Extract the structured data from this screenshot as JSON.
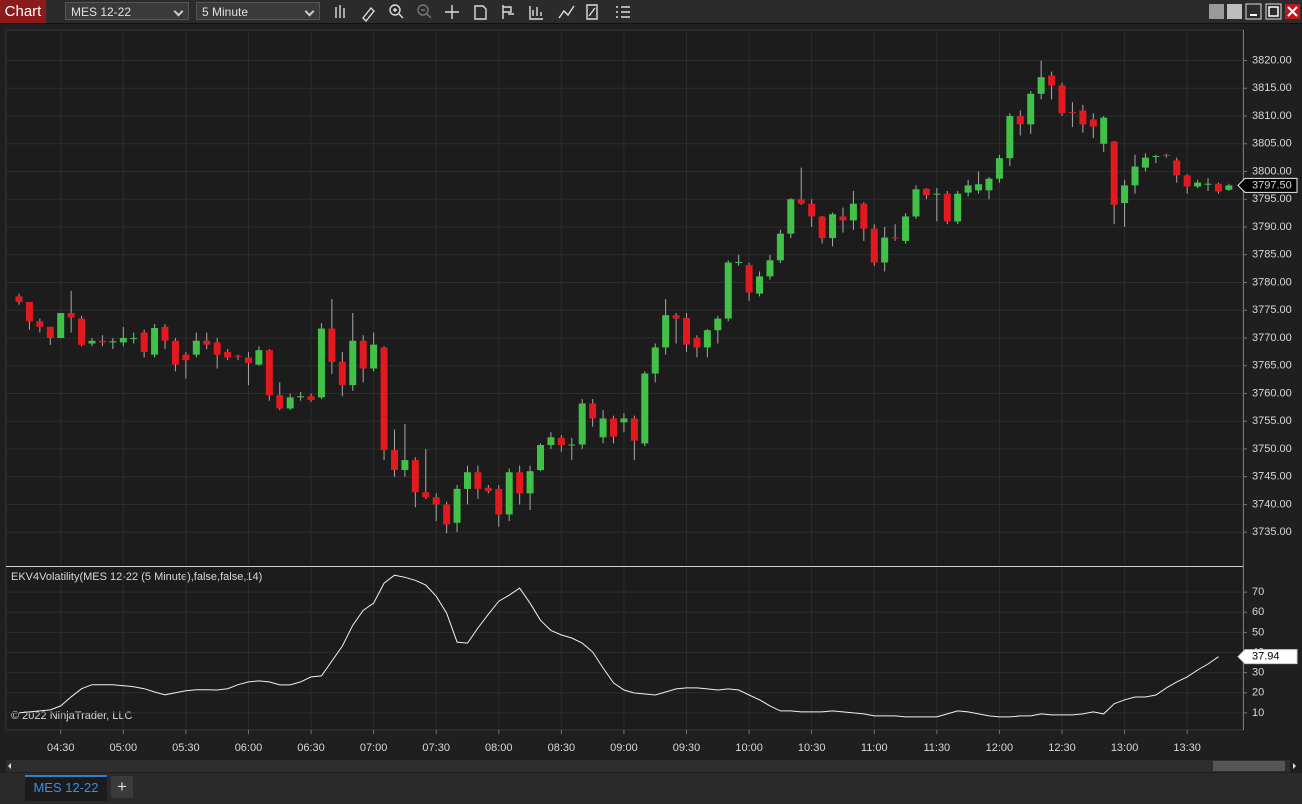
{
  "toolbar": {
    "label": "Chart",
    "instrument": "MES 12-22",
    "interval": "5 Minute"
  },
  "tabs": {
    "active": "MES 12-22",
    "add": "+"
  },
  "chart_data": [
    {
      "type": "candlestick",
      "categories": [
        null,
        null,
        null,
        null,
        "04:30",
        null,
        null,
        null,
        null,
        null,
        "05:00",
        null,
        null,
        null,
        null,
        null,
        "05:30",
        null,
        null,
        null,
        null,
        null,
        "06:00",
        null,
        null,
        null,
        null,
        null,
        "06:30",
        null,
        null,
        null,
        null,
        null,
        "07:00",
        null,
        null,
        null,
        null,
        null,
        "07:30",
        null,
        null,
        null,
        null,
        null,
        "08:00",
        null,
        null,
        null,
        null,
        null,
        "08:30",
        null,
        null,
        null,
        null,
        null,
        "09:00",
        null,
        null,
        null,
        null,
        null,
        "09:30",
        null,
        null,
        null,
        null,
        null,
        "10:00",
        null,
        null,
        null,
        null,
        null,
        "10:30",
        null,
        null,
        null,
        null,
        null,
        "11:00",
        null,
        null,
        null,
        null,
        null,
        "11:30",
        null,
        null,
        null,
        null,
        null,
        "12:00",
        null,
        null,
        null,
        null,
        null,
        "12:30",
        null,
        null,
        null,
        null,
        null,
        "13:00",
        null,
        null,
        null,
        null,
        null,
        "13:30",
        null,
        null,
        null,
        null
      ],
      "open": [
        3777.5,
        3776.5,
        3773,
        3772,
        3770,
        3774.5,
        3773.5,
        3769,
        3769.5,
        3769.2,
        3769.2,
        3770,
        3771,
        3767,
        3772,
        3769.5,
        3767,
        3767,
        3769.5,
        3769.2,
        3767.5,
        3766.8,
        3766.5,
        3765.2,
        3767.8,
        3759.7,
        3757.3,
        3759.3,
        3759.5,
        3759.3,
        3771.7,
        3765.7,
        3761.5,
        3769.5,
        3764.5,
        3768.3,
        3749.8,
        3746.2,
        3748,
        3742.2,
        3741.3,
        3740,
        3736.7,
        3742.8,
        3745.8,
        3743,
        3742.8,
        3738.2,
        3745.8,
        3742,
        3746.2,
        3750.7,
        3752,
        3750.7,
        3750.8,
        3758.2,
        3752.1,
        3755.5,
        3754.8,
        3755.5,
        3751,
        3763.6,
        3768.3,
        3774.1,
        3773.6,
        3770,
        3768.3,
        3771.4,
        3773.5,
        3783.6,
        3783.1,
        3778,
        3781.1,
        3784,
        3788.8,
        3795,
        3794.2,
        3791.9,
        3788,
        3791.9,
        3791.2,
        3794.2,
        3789.7,
        3783.6,
        3788.1,
        3787.5,
        3791.9,
        3796.9,
        3796,
        3796,
        3791,
        3796.2,
        3796.6,
        3796.6,
        3798.7,
        3802.4,
        3810,
        3808.5,
        3814,
        3817.3,
        3815.5,
        3810.7,
        3811,
        3809.4,
        3805,
        3805.4,
        3794.3,
        3797.5,
        3800.7,
        3802.7,
        3803,
        3802,
        3799.3,
        3797.3,
        3797.8,
        3797.8,
        3796.7
      ],
      "high": [
        3778,
        3776.5,
        3773.5,
        3772,
        3774.5,
        3778.5,
        3774,
        3770,
        3770.5,
        3770,
        3772,
        3771,
        3771.5,
        3772.5,
        3772.5,
        3770,
        3767.5,
        3771,
        3771,
        3770,
        3768,
        3767,
        3767.5,
        3768.5,
        3768,
        3762,
        3760,
        3760.3,
        3760,
        3772.7,
        3777,
        3767.5,
        3774.5,
        3770.5,
        3771,
        3768.5,
        3753.5,
        3754.5,
        3748.5,
        3750,
        3742,
        3740.5,
        3743.5,
        3747,
        3747,
        3743.5,
        3743.5,
        3746.5,
        3747,
        3747,
        3751,
        3753,
        3752.5,
        3752,
        3759,
        3759,
        3757,
        3756,
        3756.5,
        3756,
        3764,
        3769,
        3777,
        3774.5,
        3774.5,
        3770.5,
        3771.6,
        3774,
        3784,
        3785,
        3783.6,
        3782,
        3785,
        3789.5,
        3795.2,
        3800.7,
        3795,
        3792,
        3792.6,
        3793.5,
        3796.5,
        3794.5,
        3790.5,
        3790,
        3790.5,
        3792.5,
        3797.5,
        3797,
        3797,
        3796.5,
        3796.5,
        3798.5,
        3800,
        3799,
        3803,
        3810.5,
        3811,
        3814.5,
        3820,
        3818,
        3816,
        3812.5,
        3812,
        3810.5,
        3810,
        3805.5,
        3798.5,
        3803,
        3803.3,
        3803,
        3803.2,
        3802.5,
        3799.5,
        3798.5,
        3798.8,
        3798,
        3797.8
      ],
      "low": [
        3776,
        3771.5,
        3771,
        3768.75,
        3770,
        3771,
        3768.5,
        3768.5,
        3768.5,
        3768,
        3768.5,
        3769,
        3766.5,
        3766.5,
        3768,
        3764,
        3762.7,
        3766.5,
        3768,
        3764.5,
        3766,
        3766,
        3761.5,
        3765,
        3758.7,
        3757,
        3757,
        3758.7,
        3758.5,
        3759,
        3763.5,
        3759.5,
        3760.5,
        3762,
        3764,
        3748,
        3745,
        3745,
        3739.5,
        3741,
        3737,
        3734.8,
        3735,
        3740,
        3741,
        3742,
        3736,
        3737,
        3740,
        3739,
        3746,
        3750,
        3749.5,
        3748,
        3750,
        3754,
        3751,
        3751,
        3753,
        3748,
        3750.5,
        3762,
        3767,
        3769,
        3767.5,
        3766.5,
        3766.5,
        3769,
        3773,
        3783,
        3776.7,
        3777.5,
        3780.5,
        3783.5,
        3788,
        3794,
        3790,
        3787,
        3786.5,
        3789,
        3789.5,
        3787.5,
        3783,
        3782,
        3787.5,
        3787,
        3791.5,
        3795,
        3791,
        3790.5,
        3790.5,
        3795.5,
        3796,
        3795,
        3798,
        3801,
        3806.5,
        3806.8,
        3813,
        3813,
        3810,
        3808,
        3807,
        3806,
        3803.5,
        3790.5,
        3790,
        3796,
        3800,
        3801.5,
        3802.5,
        3798,
        3796,
        3797,
        3796.5,
        3796,
        3796.5
      ],
      "close": [
        3776.5,
        3773,
        3772,
        3770,
        3774.5,
        3773.7,
        3768.75,
        3769.5,
        3769.2,
        3769.4,
        3770,
        3770,
        3767.5,
        3771.8,
        3769.5,
        3765.2,
        3766,
        3769.5,
        3768.8,
        3767,
        3766.5,
        3766.7,
        3765.5,
        3767.8,
        3759.7,
        3757.3,
        3759.3,
        3759.5,
        3758.8,
        3771.7,
        3765.7,
        3761.5,
        3769.5,
        3764.5,
        3768.8,
        3749.8,
        3746.2,
        3748,
        3742.2,
        3741.3,
        3740,
        3736.4,
        3742.8,
        3745.8,
        3742.8,
        3742.4,
        3738.2,
        3745.8,
        3742,
        3746,
        3750.7,
        3752.1,
        3750.7,
        3750.8,
        3758.2,
        3755.5,
        3755.5,
        3752.2,
        3755.5,
        3751.5,
        3763.6,
        3768.3,
        3774.1,
        3773.5,
        3768.8,
        3768.3,
        3771.4,
        3773.5,
        3783.6,
        3783.7,
        3778.2,
        3781.1,
        3784,
        3788.8,
        3795,
        3794.2,
        3791.9,
        3788,
        3792.3,
        3791.2,
        3794.2,
        3789.7,
        3783.6,
        3788.1,
        3788,
        3791.9,
        3796.8,
        3795.7,
        3796,
        3791,
        3796,
        3797.5,
        3797.7,
        3798.7,
        3802.4,
        3810,
        3808.5,
        3814,
        3817,
        3815.5,
        3810.5,
        3810.5,
        3808.5,
        3808.1,
        3809.7,
        3794,
        3797.5,
        3800.9,
        3802.5,
        3802.8,
        3802.9,
        3799.3,
        3797.3,
        3798,
        3797.8,
        3796.4,
        3797.5
      ],
      "up_color": "#41c147",
      "down_color": "#e2191f",
      "wick_color": "#a8a8a8",
      "last_price": {
        "value": 3797.5,
        "label": "3797.50"
      },
      "ylim": [
        3729,
        3825.5
      ],
      "yticks": [
        {
          "value": 3735,
          "label": "3735.00"
        },
        {
          "value": 3740,
          "label": "3740.00"
        },
        {
          "value": 3745,
          "label": "3745.00"
        },
        {
          "value": 3750,
          "label": "3750.00"
        },
        {
          "value": 3755,
          "label": "3755.00"
        },
        {
          "value": 3760,
          "label": "3760.00"
        },
        {
          "value": 3765,
          "label": "3765.00"
        },
        {
          "value": 3770,
          "label": "3770.00"
        },
        {
          "value": 3775,
          "label": "3775.00"
        },
        {
          "value": 3780,
          "label": "3780.00"
        },
        {
          "value": 3785,
          "label": "3785.00"
        },
        {
          "value": 3790,
          "label": "3790.00"
        },
        {
          "value": 3795,
          "label": "3795.00"
        },
        {
          "value": 3800,
          "label": "3800.00"
        },
        {
          "value": 3805,
          "label": "3805.00"
        },
        {
          "value": 3810,
          "label": "3810.00"
        },
        {
          "value": 3815,
          "label": "3815.00"
        },
        {
          "value": 3820,
          "label": "3820.00"
        }
      ],
      "grid": true
    },
    {
      "type": "line",
      "title": "EKV4Volatility(MES 12-22 (5 Minute),false,false,14)",
      "annotation": "© 2022 NinjaTrader, LLC",
      "color": "#f0f0f0",
      "values": [
        10,
        10.5,
        11,
        11.5,
        13.5,
        18,
        22,
        24,
        24,
        24,
        23.5,
        23,
        22,
        20.4,
        19,
        20,
        21,
        21.5,
        21.5,
        21.4,
        22,
        24,
        25.4,
        25.9,
        25.4,
        23.9,
        23.9,
        25.4,
        27.9,
        28.4,
        35.8,
        43.2,
        53.6,
        61,
        64.5,
        74.5,
        78.4,
        77.4,
        75.9,
        73.5,
        68,
        59.6,
        45.2,
        44.7,
        52.2,
        59,
        65.5,
        68.5,
        72,
        64.5,
        56,
        51,
        48.7,
        47.2,
        44.7,
        40.3,
        32.3,
        24.9,
        21.4,
        19.9,
        19.4,
        18.9,
        20.4,
        21.9,
        22.4,
        22.4,
        21.9,
        21.4,
        21.9,
        21.4,
        18.9,
        16.5,
        13.5,
        11,
        11,
        10.5,
        10.5,
        10.5,
        11,
        10.5,
        10,
        9.5,
        8.5,
        8.5,
        8.5,
        8,
        8,
        8,
        8,
        9.5,
        11,
        10.5,
        9.5,
        8.5,
        8,
        8,
        8.5,
        8.5,
        9.5,
        9,
        9,
        9,
        9.5,
        10.5,
        9.5,
        14.5,
        16.5,
        17.9,
        17.9,
        18.9,
        22.4,
        25.4,
        27.9,
        31.3,
        34.3,
        37.94,
        null
      ],
      "last_value": 37.94,
      "ylim": [
        1.5,
        82
      ],
      "yticks": [
        10,
        20,
        30,
        40,
        50,
        60,
        70
      ],
      "grid": true
    }
  ]
}
